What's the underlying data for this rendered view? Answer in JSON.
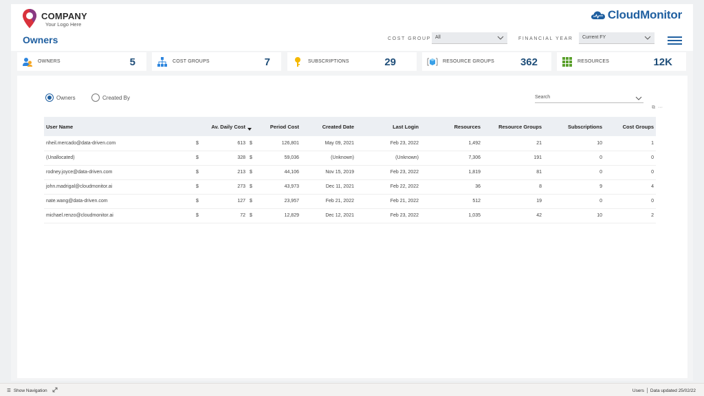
{
  "header": {
    "logo_company": "COMPANY",
    "logo_tagline": "Your Logo Here",
    "page_title": "Owners",
    "brand_name": "CloudMonitor",
    "brand_color": "#1f5fa0"
  },
  "filters": {
    "cost_group_label": "COST GROUP",
    "cost_group_value": "All",
    "financial_year_label": "FINANCIAL YEAR",
    "financial_year_value": "Current FY"
  },
  "kpis": [
    {
      "icon": "owners-icon",
      "label": "OWNERS",
      "value": "5"
    },
    {
      "icon": "cost-groups-icon",
      "label": "COST GROUPS",
      "value": "7"
    },
    {
      "icon": "subscriptions-key-icon",
      "label": "SUBSCRIPTIONS",
      "value": "29"
    },
    {
      "icon": "resource-groups-icon",
      "label": "RESOURCE GROUPS",
      "value": "362"
    },
    {
      "icon": "resources-grid-icon",
      "label": "RESOURCES",
      "value": "12K"
    }
  ],
  "view_toggle": {
    "option1": "Owners",
    "option2": "Created By",
    "selected": "Owners"
  },
  "search": {
    "label": "Search"
  },
  "table": {
    "columns": [
      "User Name",
      "Av. Daily Cost",
      "Period Cost",
      "Created Date",
      "Last Login",
      "Resources",
      "Resource Groups",
      "Subscriptions",
      "Cost Groups"
    ],
    "sorted_column": "Period Cost",
    "rows": [
      {
        "user": "nheil.mercado@data-driven.com",
        "cur1": "$",
        "daily": "613",
        "cur2": "$",
        "period": "126,801",
        "created": "May 09, 2021",
        "login": "Feb 23, 2022",
        "resources": "1,492",
        "rgroups": "21",
        "subs": "10",
        "cgroups": "1"
      },
      {
        "user": "(Unallocated)",
        "cur1": "$",
        "daily": "328",
        "cur2": "$",
        "period": "59,036",
        "created": "(Unknown)",
        "login": "(Unknown)",
        "resources": "7,306",
        "rgroups": "191",
        "subs": "0",
        "cgroups": "0"
      },
      {
        "user": "rodney.joyce@data-driven.com",
        "cur1": "$",
        "daily": "213",
        "cur2": "$",
        "period": "44,106",
        "created": "Nov 15, 2019",
        "login": "Feb 23, 2022",
        "resources": "1,819",
        "rgroups": "81",
        "subs": "0",
        "cgroups": "0"
      },
      {
        "user": "john.madrigal@cloudmonitor.ai",
        "cur1": "$",
        "daily": "273",
        "cur2": "$",
        "period": "43,973",
        "created": "Dec 11, 2021",
        "login": "Feb 22, 2022",
        "resources": "36",
        "rgroups": "8",
        "subs": "9",
        "cgroups": "4"
      },
      {
        "user": "nate.wang@data-driven.com",
        "cur1": "$",
        "daily": "127",
        "cur2": "$",
        "period": "23,957",
        "created": "Feb 21, 2022",
        "login": "Feb 21, 2022",
        "resources": "512",
        "rgroups": "19",
        "subs": "0",
        "cgroups": "0"
      },
      {
        "user": "michael.renzo@cloudmonitor.ai",
        "cur1": "$",
        "daily": "72",
        "cur2": "$",
        "period": "12,829",
        "created": "Dec 12, 2021",
        "login": "Feb 23, 2022",
        "resources": "1,035",
        "rgroups": "42",
        "subs": "10",
        "cgroups": "2"
      }
    ]
  },
  "statusbar": {
    "show_navigation": "Show Navigation",
    "users": "Users",
    "data_updated": "Data updated 25/02/22"
  }
}
